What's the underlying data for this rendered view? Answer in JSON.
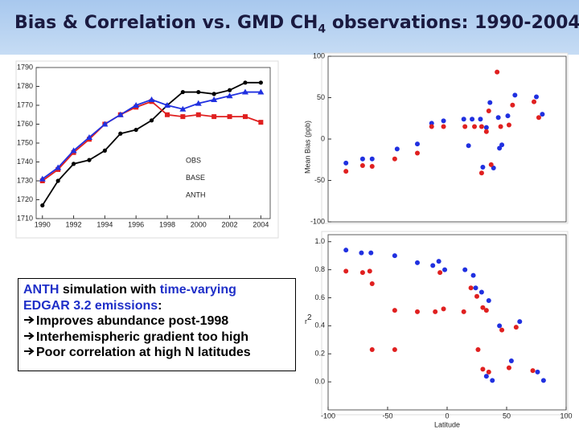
{
  "slide": {
    "title": {
      "main": "Bias & Correlation vs. GMD CH",
      "sub": "4",
      "rest": " observations: 1990-2004"
    },
    "text_box": {
      "line1": [
        "ANTH",
        " simulation with ",
        "time-varying"
      ],
      "line2": [
        "EDGAR 3.2 emissions",
        ":"
      ],
      "bullets": [
        "Improves abundance post-1998",
        "Interhemispheric gradient too high",
        "Poor correlation at high N latitudes"
      ]
    }
  },
  "chart_data": [
    {
      "type": "line",
      "x": [
        1990,
        1991,
        1992,
        1993,
        1994,
        1995,
        1996,
        1997,
        1998,
        1999,
        2000,
        2001,
        2002,
        2003,
        2004
      ],
      "series": [
        {
          "name": "OBS",
          "color": "#000000",
          "values": [
            1717,
            1730,
            1739,
            1741,
            1746,
            1755,
            1757,
            1762,
            1770,
            1777,
            1777,
            1776,
            1778,
            1782,
            1782
          ]
        },
        {
          "name": "BASE",
          "color": "#e02020",
          "values": [
            1730,
            1736,
            1745,
            1752,
            1760,
            1765,
            1769,
            1772,
            1765,
            1764,
            1765,
            1764,
            1764,
            1764,
            1761
          ]
        },
        {
          "name": "ANTH",
          "color": "#2030e0",
          "values": [
            1731,
            1737,
            1746,
            1753,
            1760,
            1765,
            1770,
            1773,
            1770,
            1768,
            1771,
            1773,
            1775,
            1777,
            1777
          ]
        }
      ],
      "xlim": [
        1989.6,
        2004.6
      ],
      "xticks": [
        1990,
        1992,
        1994,
        1996,
        1998,
        2000,
        2002,
        2004
      ],
      "ylim": [
        1710,
        1790
      ],
      "yticks": [
        1710,
        1720,
        1730,
        1740,
        1750,
        1760,
        1770,
        1780,
        1790
      ]
    },
    {
      "type": "scatter",
      "y_label": "Mean Bias (ppb)",
      "series": [
        {
          "color": "#2030e0",
          "x": [
            -85,
            -71,
            -63,
            -42,
            -25,
            -13,
            -3,
            14,
            18,
            21,
            28,
            30,
            33,
            36,
            39,
            44,
            46,
            43,
            51,
            57,
            75,
            80
          ],
          "values": [
            -29,
            -24,
            -24,
            -12,
            -6,
            19,
            22,
            24,
            -8,
            24,
            24,
            -34,
            14,
            44,
            -35,
            -11,
            -7,
            26,
            28,
            53,
            51,
            30
          ]
        },
        {
          "color": "#e02020",
          "x": [
            -85,
            -71,
            -63,
            -44,
            -25,
            -13,
            -3,
            15,
            23,
            29,
            29,
            33,
            35,
            37,
            42,
            45,
            52,
            55,
            73,
            77
          ],
          "values": [
            -39,
            -32,
            -33,
            -24,
            -17,
            15,
            15,
            15,
            15,
            15,
            -41,
            9,
            34,
            -31,
            81,
            15,
            17,
            41,
            45,
            26
          ]
        }
      ],
      "xlim": [
        -100,
        100
      ],
      "ylim": [
        -100,
        100
      ],
      "yticks": [
        -100,
        -50,
        0,
        50,
        100
      ]
    },
    {
      "type": "scatter",
      "y_label": "r",
      "y_label_sup": "2",
      "x_label": "Latitude",
      "series": [
        {
          "color": "#2030e0",
          "x": [
            -85,
            -72,
            -64,
            -44,
            -25,
            -12,
            -7,
            -2,
            15,
            22,
            24,
            29,
            35,
            33,
            38,
            44,
            54,
            61,
            76,
            81
          ],
          "values": [
            0.94,
            0.92,
            0.92,
            0.9,
            0.85,
            0.83,
            0.86,
            0.8,
            0.8,
            0.76,
            0.67,
            0.64,
            0.58,
            0.04,
            0.01,
            0.4,
            0.15,
            0.43,
            0.07,
            0.01
          ]
        },
        {
          "color": "#e02020",
          "x": [
            -85,
            -71,
            -65,
            -63,
            -44,
            -25,
            -10,
            -6,
            -3,
            14,
            20,
            25,
            30,
            33,
            26,
            30,
            35,
            46,
            52,
            58,
            72,
            -63,
            -44
          ],
          "values": [
            0.79,
            0.78,
            0.79,
            0.7,
            0.51,
            0.5,
            0.5,
            0.78,
            0.52,
            0.5,
            0.67,
            0.61,
            0.53,
            0.51,
            0.23,
            0.09,
            0.07,
            0.37,
            0.1,
            0.39,
            0.08,
            0.23,
            0.23
          ]
        }
      ],
      "xlim": [
        -100,
        100
      ],
      "xticks": [
        -100,
        -50,
        0,
        50,
        100
      ],
      "ylim": [
        -0.2,
        1.05
      ],
      "yticks": [
        {
          "value": 0,
          "label": "0.0"
        },
        0.2,
        0.4,
        0.6,
        0.8,
        {
          "value": 1,
          "label": "1.0"
        }
      ]
    }
  ]
}
